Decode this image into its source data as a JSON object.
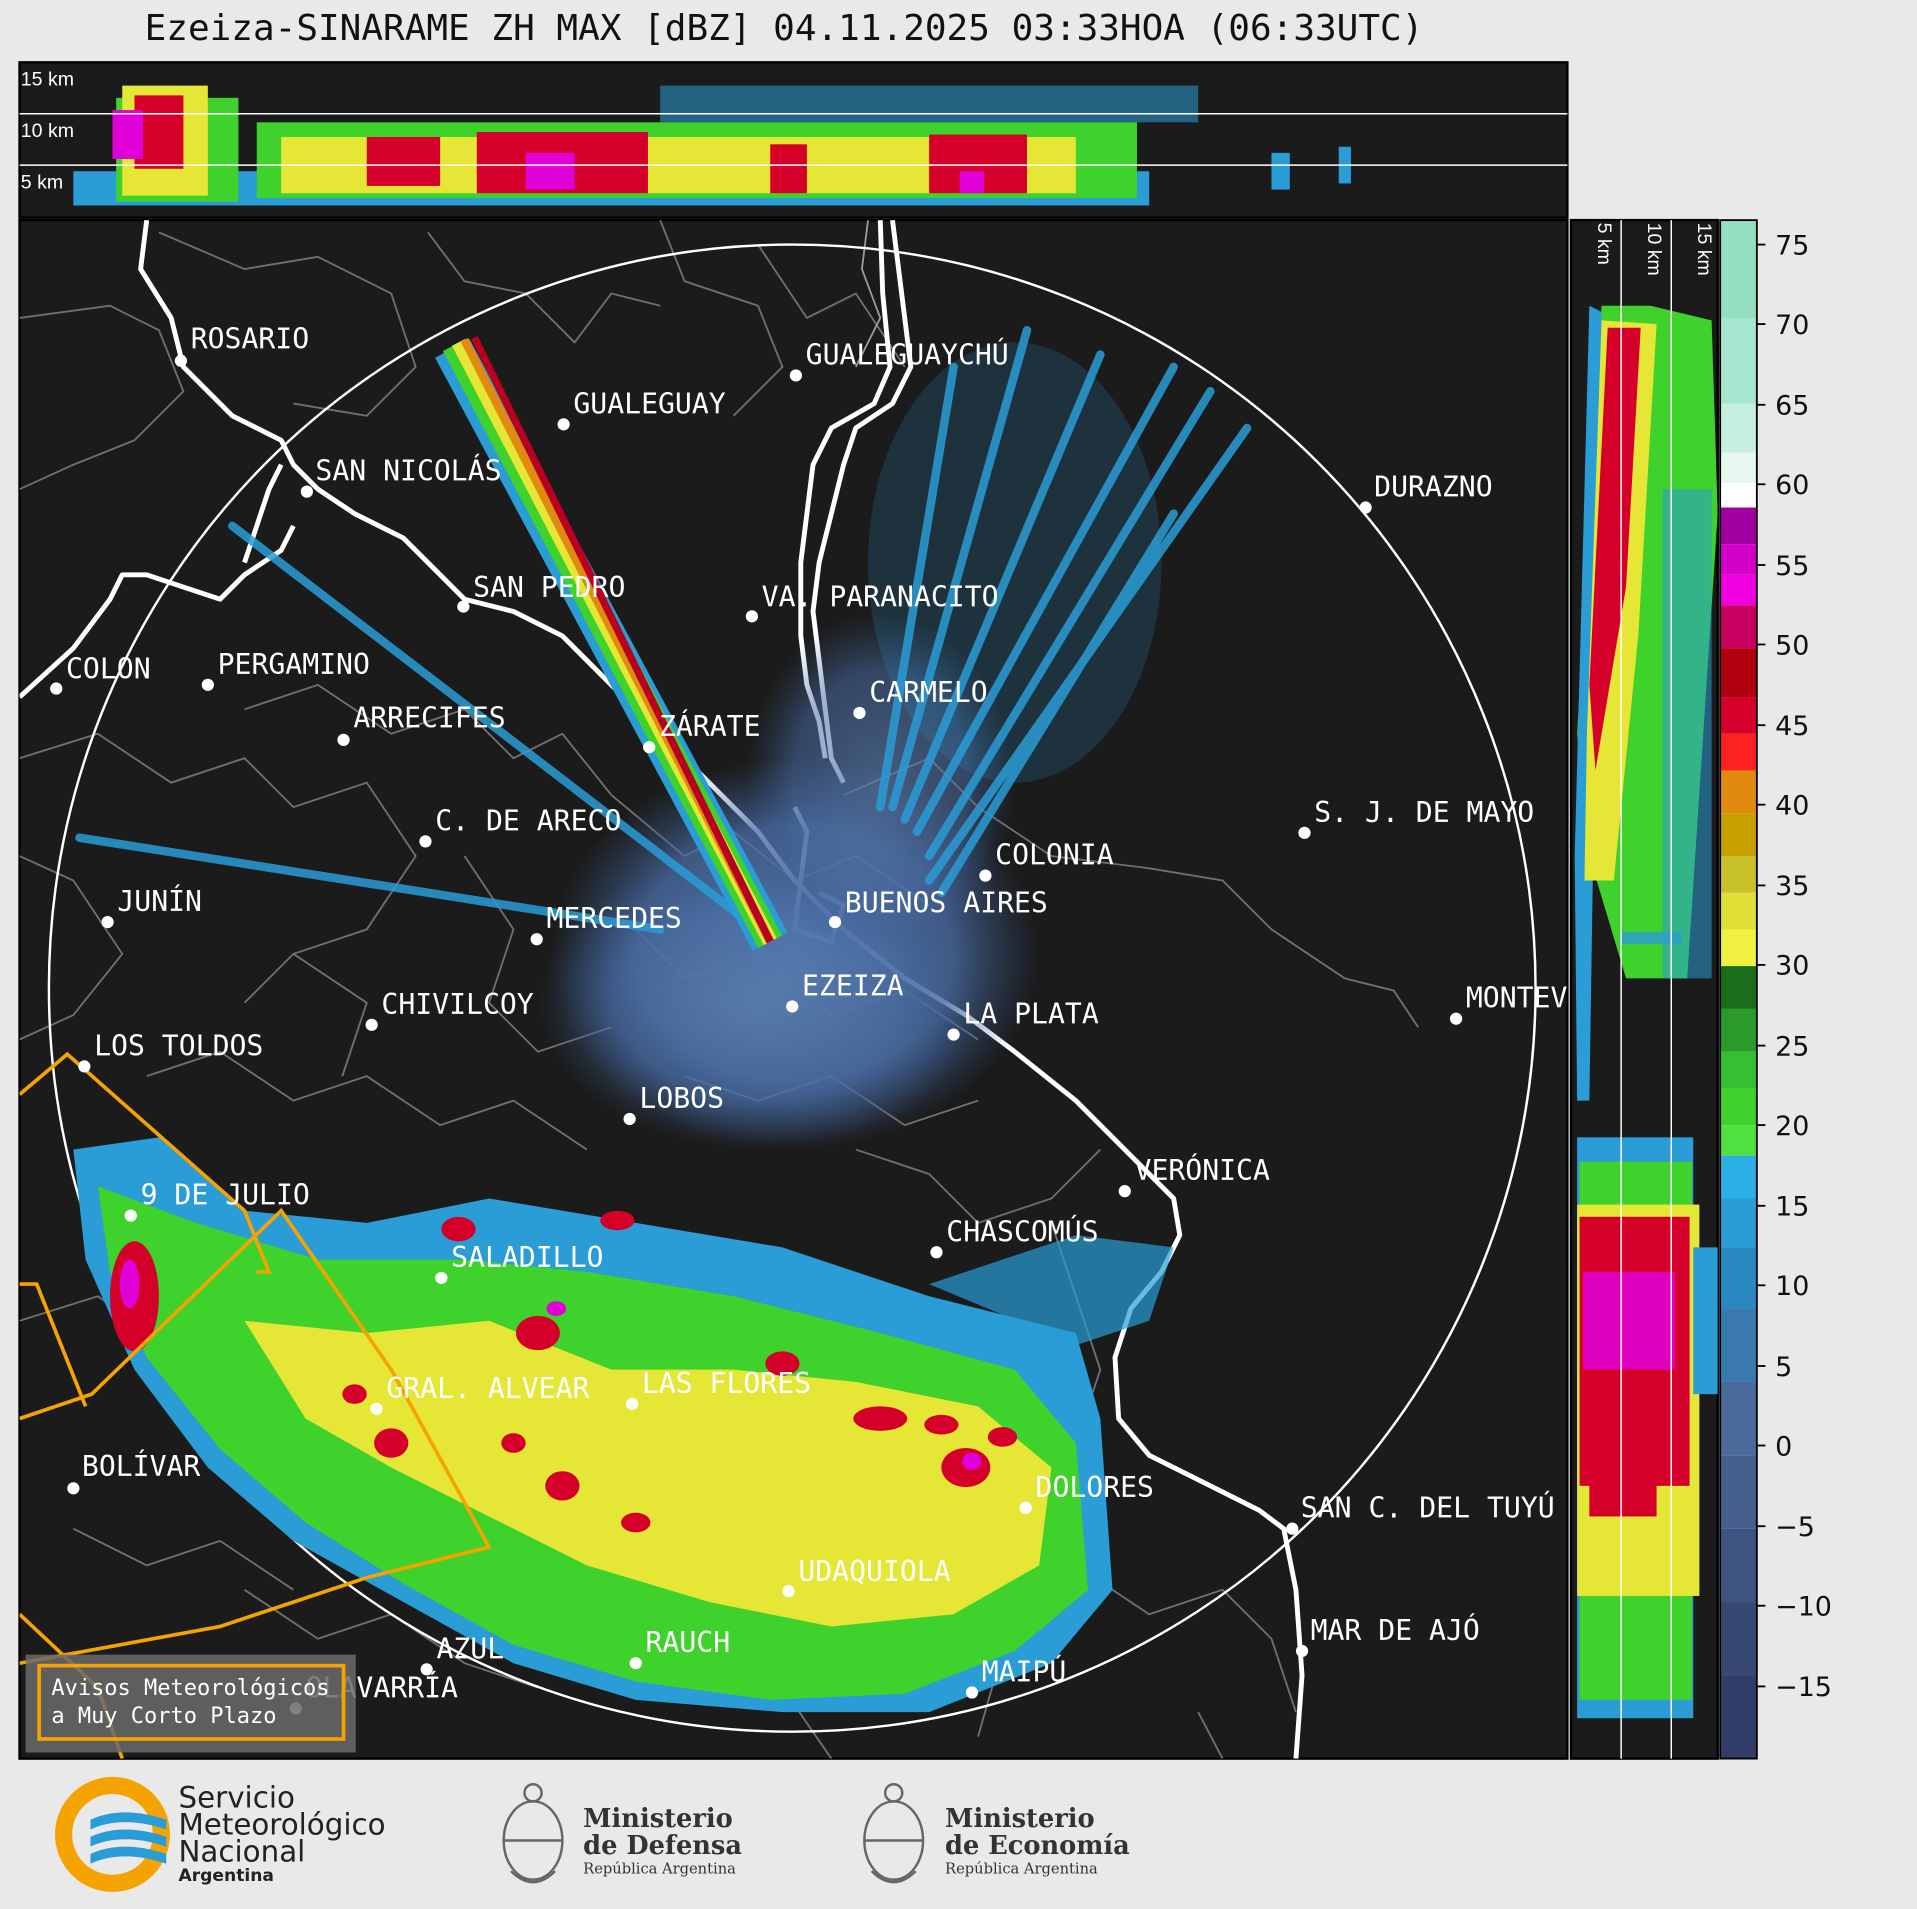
{
  "title": "Ezeiza-SINARAME ZH MAX [dBZ] 04.11.2025 03:33HOA (06:33UTC)",
  "top_panel": {
    "height_labels": [
      "15 km",
      "10 km",
      "5 km"
    ]
  },
  "side_panel": {
    "height_labels": [
      "5 km",
      "10 km",
      "15 km"
    ]
  },
  "colorbar": {
    "unit": "dBZ",
    "ticks": [
      "75",
      "70",
      "65",
      "60",
      "55",
      "50",
      "45",
      "40",
      "35",
      "30",
      "25",
      "20",
      "15",
      "10",
      "5",
      "0",
      "−5",
      "−10",
      "−15"
    ],
    "range": [
      -20,
      77
    ],
    "colors": {
      "teal": "#7dd9b8",
      "white": "#ffffff",
      "magenta": "#e000d8",
      "red": "#d4002a",
      "orange": "#e08a10",
      "yellow": "#e6e636",
      "green": "#3fd12c",
      "blue": "#2a9cd6",
      "slate": "#4a6a9a"
    }
  },
  "map": {
    "background": "#1b1b1b",
    "range_ring": "#ffffff",
    "cities": [
      {
        "name": "ROSARIO"
      },
      {
        "name": "GUALEGUAYCHÚ"
      },
      {
        "name": "GUALEGUAY"
      },
      {
        "name": "SAN NICOLÁS"
      },
      {
        "name": "DURAZNO"
      },
      {
        "name": "SAN PEDRO"
      },
      {
        "name": "VA. PARANACITO"
      },
      {
        "name": "COLON"
      },
      {
        "name": "PERGAMINO"
      },
      {
        "name": "CARMELO"
      },
      {
        "name": "ARRECIFES"
      },
      {
        "name": "ZÁRATE"
      },
      {
        "name": "S. J. DE MAYO"
      },
      {
        "name": "C. DE ARECO"
      },
      {
        "name": "COLONIA"
      },
      {
        "name": "JUNÍN"
      },
      {
        "name": "BUENOS AIRES"
      },
      {
        "name": "MERCEDES"
      },
      {
        "name": "EZEIZA"
      },
      {
        "name": "MONTEV"
      },
      {
        "name": "CHIVILCOY"
      },
      {
        "name": "LA PLATA"
      },
      {
        "name": "LOS TOLDOS"
      },
      {
        "name": "LOBOS"
      },
      {
        "name": "VERÓNICA"
      },
      {
        "name": "9 DE JULIO"
      },
      {
        "name": "CHASCOMÚS"
      },
      {
        "name": "SALADILLO"
      },
      {
        "name": "GRAL. ALVEAR"
      },
      {
        "name": "LAS FLORES"
      },
      {
        "name": "BOLÍVAR"
      },
      {
        "name": "DOLORES"
      },
      {
        "name": "SAN C. DEL TUYÚ"
      },
      {
        "name": "UDAQUIOLA"
      },
      {
        "name": "MAR DE AJÓ"
      },
      {
        "name": "AZUL"
      },
      {
        "name": "RAUCH"
      },
      {
        "name": "OLAVARRÍA"
      },
      {
        "name": "MAIPÚ"
      }
    ],
    "legend_box": {
      "line1": "Avisos Meteorológicos",
      "line2": "a Muy Corto Plazo",
      "color": "#f5a300"
    }
  },
  "footer": {
    "smn": {
      "line1": "Servicio",
      "line2": "Meteorológico",
      "line3": "Nacional",
      "line4": "Argentina"
    },
    "defensa": {
      "line1": "Ministerio",
      "line2": "de Defensa",
      "line3": "República Argentina"
    },
    "economia": {
      "line1": "Ministerio",
      "line2": "de Economía",
      "line3": "República Argentina"
    }
  }
}
